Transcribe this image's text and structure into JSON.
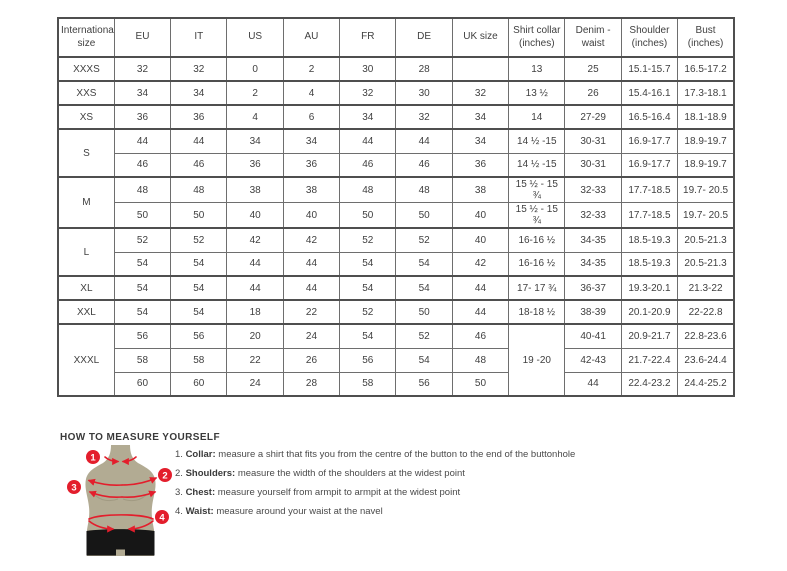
{
  "table": {
    "columns": [
      "International size",
      "EU",
      "IT",
      "US",
      "AU",
      "FR",
      "DE",
      "UK size",
      "Shirt collar (inches)",
      "Denim - waist",
      "Shoulder (inches)",
      "Bust (inches)"
    ],
    "body": [
      {
        "group_start": true,
        "cells": [
          "XXXS",
          "32",
          "32",
          "0",
          "2",
          "30",
          "28",
          "",
          "13",
          "25",
          "15.1-15.7",
          "16.5-17.2"
        ]
      },
      {
        "group_start": true,
        "cells": [
          "XXS",
          "34",
          "34",
          "2",
          "4",
          "32",
          "30",
          "32",
          "13 ½",
          "26",
          "15.4-16.1",
          "17.3-18.1"
        ]
      },
      {
        "group_start": true,
        "cells": [
          "XS",
          "36",
          "36",
          "4",
          "6",
          "34",
          "32",
          "34",
          "14",
          "27-29",
          "16.5-16.4",
          "18.1-18.9"
        ]
      },
      {
        "group_start": true,
        "cells": [
          {
            "t": "S",
            "rs": 2
          },
          "44",
          "44",
          "34",
          "34",
          "44",
          "44",
          "34",
          "14 ½ -15",
          "30-31",
          "16.9-17.7",
          "18.9-19.7"
        ]
      },
      {
        "group_start": false,
        "cells": [
          "46",
          "46",
          "36",
          "36",
          "46",
          "46",
          "36",
          "14 ½ -15",
          "30-31",
          "16.9-17.7",
          "18.9-19.7"
        ]
      },
      {
        "group_start": true,
        "cells": [
          {
            "t": "M",
            "rs": 2
          },
          "48",
          "48",
          "38",
          "38",
          "48",
          "48",
          "38",
          "15 ½ - 15 ¾",
          "32-33",
          "17.7-18.5",
          "19.7- 20.5"
        ]
      },
      {
        "group_start": false,
        "cells": [
          "50",
          "50",
          "40",
          "40",
          "50",
          "50",
          "40",
          "15 ½ - 15 ¾",
          "32-33",
          "17.7-18.5",
          "19.7- 20.5"
        ]
      },
      {
        "group_start": true,
        "cells": [
          {
            "t": "L",
            "rs": 2
          },
          "52",
          "52",
          "42",
          "42",
          "52",
          "52",
          "40",
          "16-16 ½",
          "34-35",
          "18.5-19.3",
          "20.5-21.3"
        ]
      },
      {
        "group_start": false,
        "cells": [
          "54",
          "54",
          "44",
          "44",
          "54",
          "54",
          "42",
          "16-16 ½",
          "34-35",
          "18.5-19.3",
          "20.5-21.3"
        ]
      },
      {
        "group_start": true,
        "cells": [
          "XL",
          "54",
          "54",
          "44",
          "44",
          "54",
          "54",
          "44",
          "17- 17 ¾",
          "36-37",
          "19.3-20.1",
          "21.3-22"
        ]
      },
      {
        "group_start": true,
        "cells": [
          "XXL",
          "54",
          "54",
          "18",
          "22",
          "52",
          "50",
          "44",
          "18-18 ½",
          "38-39",
          "20.1-20.9",
          "22-22.8"
        ]
      },
      {
        "group_start": true,
        "cells": [
          {
            "t": "XXXL",
            "rs": 3
          },
          "56",
          "56",
          "20",
          "24",
          "54",
          "52",
          "46",
          {
            "t": "19 -20",
            "rs": 3
          },
          "40-41",
          "20.9-21.7",
          "22.8-23.6"
        ]
      },
      {
        "group_start": false,
        "cells": [
          "58",
          "58",
          "22",
          "26",
          "56",
          "54",
          "48",
          "42-43",
          "21.7-22.4",
          "23.6-24.4"
        ]
      },
      {
        "group_start": false,
        "cells": [
          "60",
          "60",
          "24",
          "28",
          "58",
          "56",
          "50",
          "44",
          "22.4-23.2",
          "24.4-25.2"
        ]
      }
    ]
  },
  "instructions": {
    "title": "HOW TO MEASURE YOURSELF",
    "items": [
      {
        "num": "1.",
        "label": "Collar",
        "text": "measure a shirt that fits you from the centre of the button to the end of the buttonhole"
      },
      {
        "num": "2.",
        "label": "Shoulders",
        "text": "measure the width of the shoulders at the widest point"
      },
      {
        "num": "3.",
        "label": "Chest",
        "text": "measure yourself from armpit to armpit at the widest point"
      },
      {
        "num": "4.",
        "label": "Waist",
        "text": "measure around your waist at the navel"
      }
    ]
  },
  "diagram": {
    "markers": [
      "1",
      "2",
      "3",
      "4"
    ],
    "colors": {
      "accent_red": "#e31e2c",
      "mannequin_tan": "#b2ab93",
      "mannequin_seam": "#a19a82",
      "shorts_black": "#161616"
    }
  }
}
